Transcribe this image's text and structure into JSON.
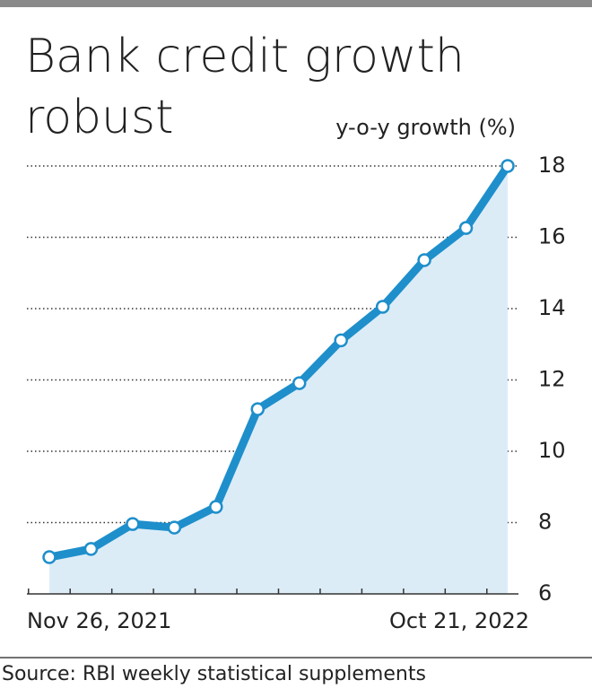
{
  "chart_data": {
    "type": "line",
    "title_lines": [
      "Bank credit growth",
      "robust"
    ],
    "y_label": "y-o-y growth (%)",
    "source": "Source: RBI weekly statistical supplements",
    "categories": [
      "Nov 26, 2021",
      null,
      null,
      null,
      null,
      null,
      null,
      null,
      null,
      null,
      null,
      "Oct 21, 2022"
    ],
    "series": [
      {
        "name": "y-o-y growth",
        "color": "#1e8fcb",
        "values": [
          7.03,
          7.26,
          7.96,
          7.86,
          8.44,
          11.18,
          11.91,
          13.11,
          14.05,
          15.36,
          16.26,
          18.0
        ]
      }
    ],
    "area_color": "#dcecf7",
    "ylim": [
      6,
      18
    ],
    "yticks": [
      6,
      8,
      10,
      12,
      14,
      16,
      18
    ],
    "grid": true
  }
}
